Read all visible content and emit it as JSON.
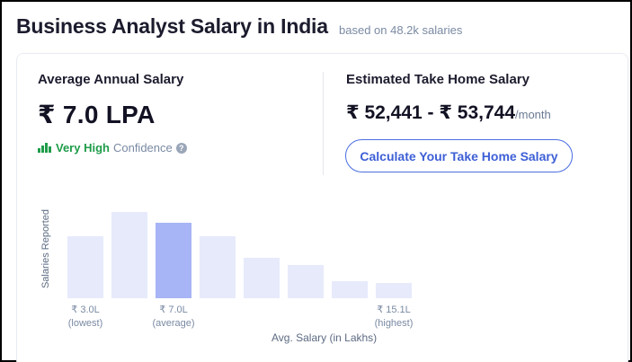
{
  "header": {
    "title": "Business Analyst Salary in India",
    "subtitle": "based on 48.2k salaries"
  },
  "average": {
    "label": "Average Annual Salary",
    "value": "₹ 7.0 LPA",
    "confidence_level": "Very High",
    "confidence_word": "Confidence",
    "help_glyph": "?"
  },
  "take_home": {
    "label": "Estimated Take Home Salary",
    "value": "₹ 52,441 - ₹ 53,744",
    "suffix": "/month",
    "button_label": "Calculate Your Take Home Salary"
  },
  "colors": {
    "bar": "#e6eafb",
    "bar_highlight": "#a7b4f5",
    "accent": "#3d5fd6",
    "confidence": "#1f9c4a"
  },
  "chart_data": {
    "type": "bar",
    "ylabel": "Salaries Reported",
    "xlabel": "Avg. Salary (in Lakhs)",
    "values": [
      68,
      95,
      83,
      68,
      45,
      37,
      19,
      17
    ],
    "highlight_index": 2,
    "grid": false,
    "tick_labels": [
      {
        "index": 0,
        "value": "₹ 3.0L",
        "note": "(lowest)"
      },
      {
        "index": 2,
        "value": "₹ 7.0L",
        "note": "(average)"
      },
      {
        "index": 7,
        "value": "₹ 15.1L",
        "note": "(highest)"
      }
    ]
  }
}
